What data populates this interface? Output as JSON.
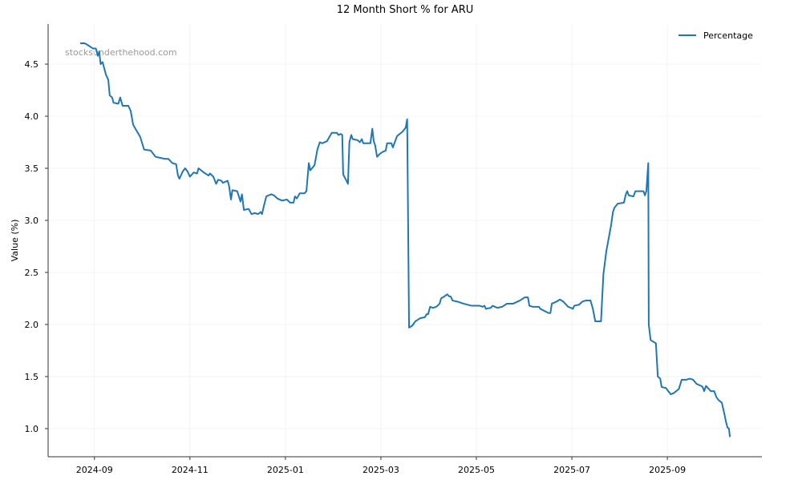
{
  "chart_data": {
    "type": "line",
    "title": "12 Month Short % for ARU",
    "ylabel": "Value (%)",
    "watermark": "stocksunderthehood.com",
    "x": [
      7.7,
      7.8,
      7.87,
      7.97,
      8.03,
      8.07,
      8.1,
      8.13,
      8.17,
      8.24,
      8.29,
      8.32,
      8.37,
      8.4,
      8.5,
      8.54,
      8.59,
      8.71,
      8.76,
      8.81,
      8.87,
      8.96,
      9.04,
      9.18,
      9.28,
      9.38,
      9.48,
      9.55,
      9.63,
      9.71,
      9.75,
      9.78,
      9.85,
      9.9,
      9.95,
      10.0,
      10.08,
      10.15,
      10.18,
      10.29,
      10.39,
      10.42,
      10.49,
      10.55,
      10.59,
      10.66,
      10.69,
      10.79,
      10.82,
      10.86,
      10.89,
      10.99,
      11.06,
      11.09,
      11.13,
      11.23,
      11.29,
      11.36,
      11.43,
      11.48,
      11.51,
      11.55,
      11.6,
      11.7,
      11.76,
      11.83,
      11.93,
      12.03,
      12.1,
      12.17,
      12.2,
      12.24,
      12.3,
      12.4,
      12.44,
      12.49,
      12.52,
      12.61,
      12.67,
      12.72,
      12.77,
      12.87,
      12.92,
      12.97,
      13.08,
      13.11,
      13.16,
      13.19,
      13.21,
      13.28,
      13.31,
      13.34,
      13.38,
      13.41,
      13.51,
      13.56,
      13.6,
      13.63,
      13.75,
      13.78,
      13.82,
      13.85,
      13.88,
      13.92,
      13.98,
      14.05,
      14.1,
      14.13,
      14.22,
      14.25,
      14.29,
      14.34,
      14.45,
      14.52,
      14.55,
      14.59,
      14.66,
      14.72,
      14.82,
      14.92,
      14.96,
      14.99,
      15.03,
      15.09,
      15.16,
      15.23,
      15.26,
      15.33,
      15.39,
      15.43,
      15.46,
      15.5,
      15.6,
      15.73,
      15.9,
      16.07,
      16.13,
      16.17,
      16.2,
      16.3,
      16.34,
      16.44,
      16.54,
      16.64,
      16.77,
      16.91,
      17.01,
      17.08,
      17.11,
      17.18,
      17.31,
      17.34,
      17.51,
      17.55,
      17.58,
      17.68,
      17.75,
      17.82,
      17.92,
      17.98,
      18.02,
      18.05,
      18.15,
      18.22,
      18.29,
      18.39,
      18.44,
      18.49,
      18.61,
      18.66,
      18.72,
      18.82,
      18.86,
      18.89,
      18.96,
      19.09,
      19.13,
      19.16,
      19.19,
      19.29,
      19.33,
      19.5,
      19.53,
      19.56,
      19.6,
      19.61,
      19.65,
      19.76,
      19.8,
      19.85,
      19.88,
      19.97,
      20.07,
      20.13,
      20.24,
      20.3,
      20.4,
      20.47,
      20.54,
      20.61,
      20.71,
      20.74,
      20.77,
      20.81,
      20.87,
      20.91,
      20.98,
      21.03,
      21.08,
      21.14,
      21.19,
      21.23,
      21.26,
      21.29,
      21.31
    ],
    "series": [
      {
        "name": "Percentage",
        "color": "#1f77b4",
        "values": [
          4.7,
          4.7,
          4.68,
          4.65,
          4.65,
          4.58,
          4.62,
          4.5,
          4.52,
          4.4,
          4.35,
          4.2,
          4.18,
          4.13,
          4.12,
          4.18,
          4.1,
          4.1,
          4.05,
          3.92,
          3.87,
          3.8,
          3.68,
          3.67,
          3.61,
          3.6,
          3.59,
          3.59,
          3.55,
          3.54,
          3.43,
          3.4,
          3.47,
          3.5,
          3.47,
          3.42,
          3.46,
          3.45,
          3.5,
          3.46,
          3.43,
          3.45,
          3.42,
          3.35,
          3.39,
          3.38,
          3.36,
          3.38,
          3.33,
          3.2,
          3.29,
          3.28,
          3.18,
          3.25,
          3.1,
          3.11,
          3.06,
          3.07,
          3.06,
          3.08,
          3.06,
          3.14,
          3.23,
          3.25,
          3.24,
          3.21,
          3.19,
          3.2,
          3.17,
          3.17,
          3.23,
          3.21,
          3.26,
          3.26,
          3.28,
          3.55,
          3.48,
          3.53,
          3.68,
          3.75,
          3.74,
          3.76,
          3.8,
          3.84,
          3.84,
          3.82,
          3.83,
          3.82,
          3.44,
          3.38,
          3.35,
          3.75,
          3.82,
          3.78,
          3.77,
          3.75,
          3.78,
          3.74,
          3.74,
          3.74,
          3.88,
          3.76,
          3.72,
          3.61,
          3.64,
          3.66,
          3.67,
          3.74,
          3.74,
          3.7,
          3.75,
          3.81,
          3.85,
          3.89,
          3.97,
          1.97,
          1.99,
          2.03,
          2.06,
          2.07,
          2.1,
          2.1,
          2.17,
          2.16,
          2.17,
          2.2,
          2.25,
          2.27,
          2.29,
          2.27,
          2.27,
          2.23,
          2.22,
          2.2,
          2.18,
          2.18,
          2.17,
          2.18,
          2.15,
          2.16,
          2.18,
          2.16,
          2.17,
          2.2,
          2.2,
          2.23,
          2.26,
          2.26,
          2.18,
          2.17,
          2.17,
          2.15,
          2.11,
          2.11,
          2.2,
          2.22,
          2.24,
          2.22,
          2.17,
          2.16,
          2.15,
          2.18,
          2.19,
          2.22,
          2.23,
          2.23,
          2.15,
          2.03,
          2.03,
          2.48,
          2.7,
          2.95,
          3.08,
          3.12,
          3.16,
          3.17,
          3.25,
          3.28,
          3.24,
          3.23,
          3.28,
          3.28,
          3.24,
          3.28,
          3.55,
          2.0,
          1.85,
          1.82,
          1.5,
          1.48,
          1.4,
          1.39,
          1.33,
          1.34,
          1.38,
          1.47,
          1.47,
          1.48,
          1.47,
          1.43,
          1.41,
          1.4,
          1.36,
          1.41,
          1.38,
          1.36,
          1.36,
          1.3,
          1.27,
          1.25,
          1.15,
          1.06,
          1.01,
          1.0,
          0.92
        ]
      }
    ],
    "xlim": [
      7.03,
      21.98
    ],
    "xticks": [
      {
        "value": 8,
        "label": "2024-09"
      },
      {
        "value": 10,
        "label": "2024-11"
      },
      {
        "value": 12,
        "label": "2025-01"
      },
      {
        "value": 14,
        "label": "2025-03"
      },
      {
        "value": 16,
        "label": "2025-05"
      },
      {
        "value": 18,
        "label": "2025-07"
      },
      {
        "value": 20,
        "label": "2025-09"
      }
    ],
    "ylim": [
      0.73,
      4.885
    ],
    "yticks": [
      {
        "value": 1,
        "label": "1.0"
      },
      1.5,
      {
        "value": 2,
        "label": "2.0"
      },
      2.5,
      {
        "value": 3,
        "label": "3.0"
      },
      3.5,
      {
        "value": 4,
        "label": "4.0"
      },
      4.5
    ],
    "grid": true,
    "legend": "upper right"
  }
}
